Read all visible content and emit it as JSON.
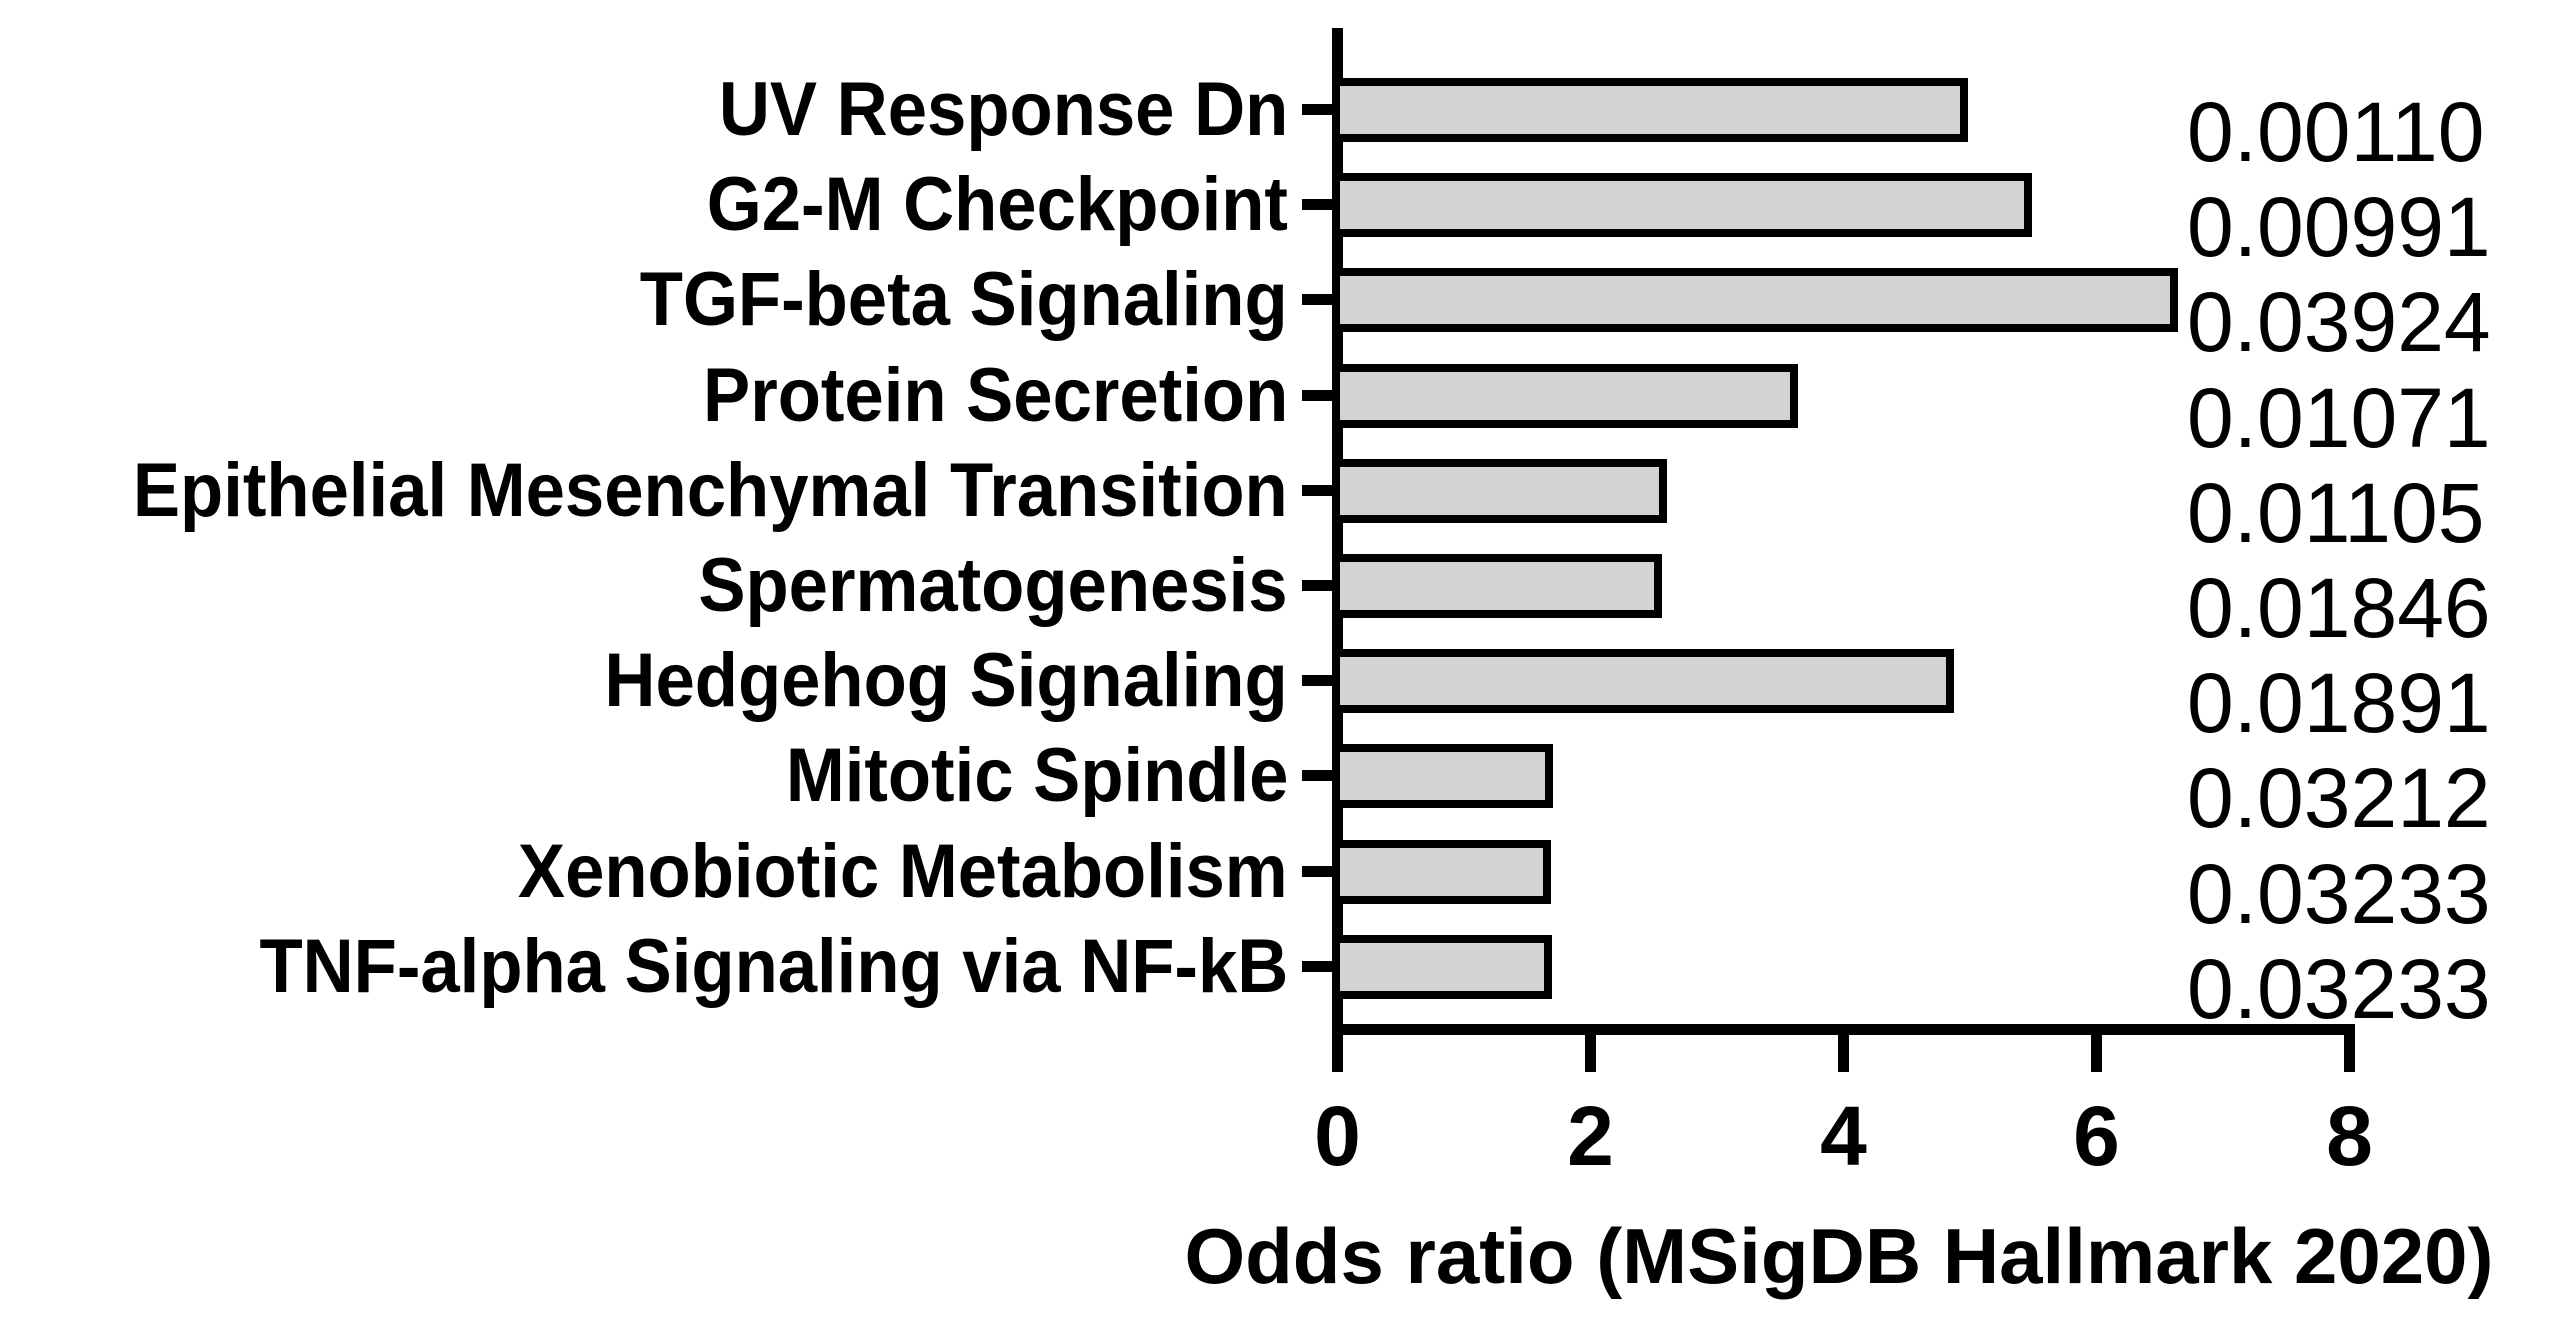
{
  "chart_data": {
    "type": "bar",
    "orientation": "horizontal",
    "xlabel": "Odds ratio (MSigDB Hallmark 2020)",
    "categories": [
      "UV Response Dn",
      "G2-M Checkpoint",
      "TGF-beta Signaling",
      "Protein Secretion",
      "Epithelial Mesenchymal Transition",
      "Spermatogenesis",
      "Hedgehog Signaling",
      "Mitotic Spindle",
      "Xenobiotic Metabolism",
      "TNF-alpha Signaling via NF-kB"
    ],
    "values": [
      4.98,
      5.49,
      6.64,
      3.64,
      2.6,
      2.56,
      4.87,
      1.7,
      1.68,
      1.69
    ],
    "p_value_labels": [
      "0.00110",
      "0.00991",
      "0.03924",
      "0.01071",
      "0.01105",
      "0.01846",
      "0.01891",
      "0.03212",
      "0.03233",
      "0.03233"
    ],
    "x_ticks": [
      0,
      2,
      4,
      6,
      8
    ],
    "x_tick_labels": [
      "0",
      "2",
      "4",
      "6",
      "8"
    ],
    "xlim": [
      0,
      8
    ],
    "grid": false,
    "bar_fill_color": "#d3d3d3",
    "bar_border_color": "#000000",
    "axis_color": "#000000",
    "text_color": "#000000",
    "background_color": "#ffffff"
  }
}
